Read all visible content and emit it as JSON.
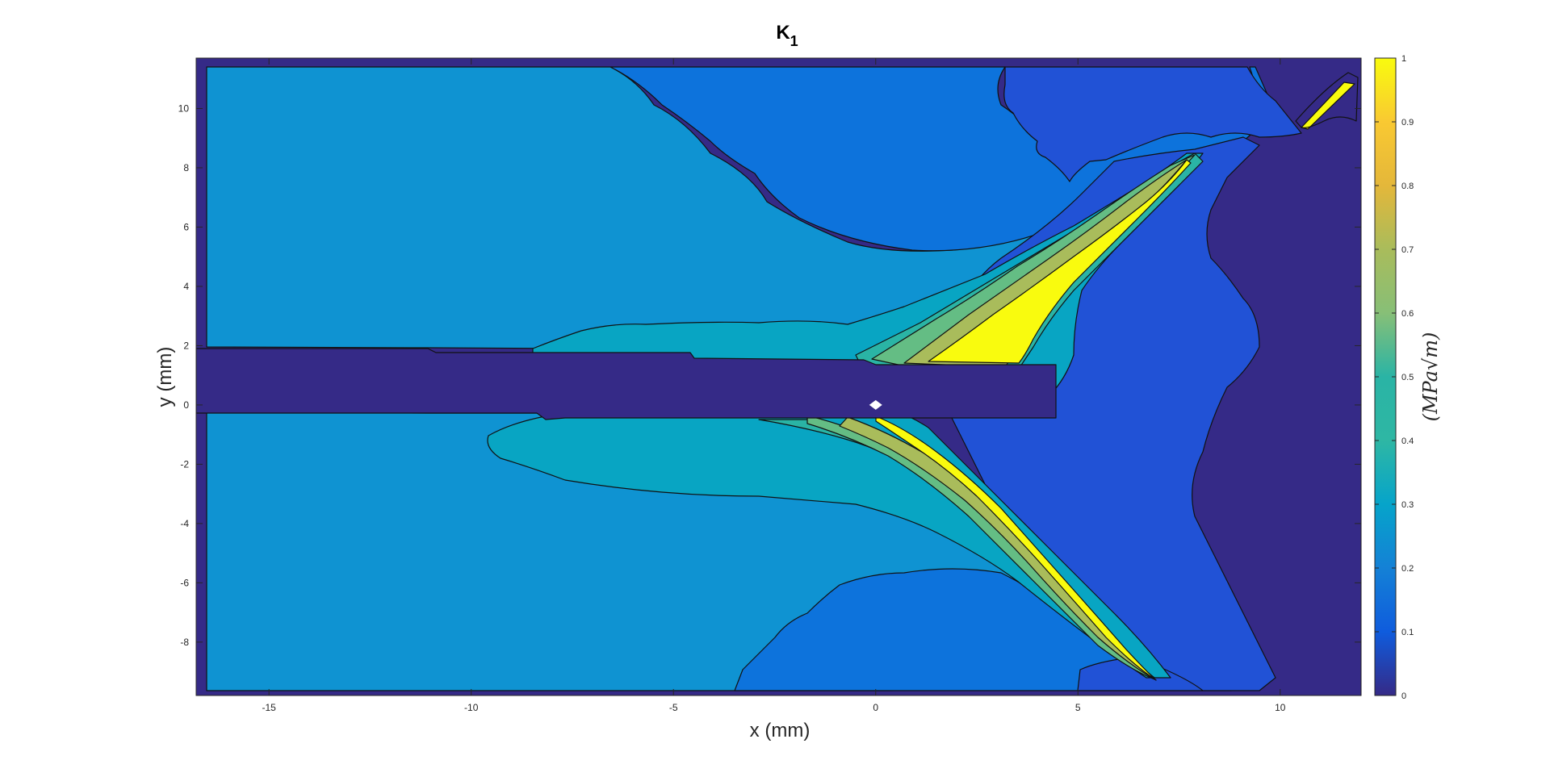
{
  "chart_data": {
    "type": "contour",
    "title": "K",
    "title_subscript": "1",
    "xlabel": "x (mm)",
    "ylabel": "y (mm)",
    "xlim": [
      -16.8,
      12
    ],
    "ylim": [
      -9.8,
      11.7
    ],
    "xticks": [
      -15,
      -10,
      -5,
      0,
      5,
      10
    ],
    "yticks": [
      -8,
      -6,
      -4,
      -2,
      0,
      2,
      4,
      6,
      8,
      10
    ],
    "xtick_labels": [
      "-15",
      "-10",
      "-5",
      "0",
      "5",
      "10"
    ],
    "ytick_labels": [
      "-8",
      "-6",
      "-4",
      "-2",
      "0",
      "2",
      "4",
      "6",
      "8",
      "10"
    ],
    "colorbar": {
      "min": 0,
      "max": 1,
      "ticks": [
        0,
        0.1,
        0.2,
        0.3,
        0.4,
        0.5,
        0.6,
        0.7,
        0.8,
        0.9,
        1
      ],
      "tick_labels": [
        "0",
        "0.1",
        "0.2",
        "0.3",
        "0.4",
        "0.5",
        "0.6",
        "0.7",
        "0.8",
        "0.9",
        "1"
      ],
      "unit_label": "(MPa√m)",
      "colormap": "parula"
    },
    "colors": {
      "level_0": "#352a87",
      "level_01": "#2152d6",
      "level_02": "#0d73dc",
      "level_03": "#0f93d2",
      "level_04": "#08a5c3",
      "level_05": "#2ab4a5",
      "level_06": "#64bd84",
      "level_07": "#a9bc5b",
      "level_08": "#e4b73a",
      "level_09": "#f7d32c",
      "level_10": "#f9fb0e"
    },
    "features": {
      "notch": {
        "x_start": -16.8,
        "x_end": 4.4,
        "y_bottom": -0.4,
        "y_top": 1.5,
        "value": 0
      },
      "marker": {
        "x": 0,
        "y": 0,
        "label": "crack tip"
      },
      "upper_branch": {
        "from": [
          1.8,
          1.5
        ],
        "to": [
          9.4,
          9.0
        ],
        "peak_value": 1
      },
      "lower_branch": {
        "from": [
          0,
          -0.4
        ],
        "to": [
          10.0,
          -9.4
        ],
        "peak_value": 1
      },
      "corner_branch": {
        "from": [
          10.6,
          9.5
        ],
        "to": [
          11.8,
          10.9
        ],
        "peak_value": 1
      }
    }
  }
}
